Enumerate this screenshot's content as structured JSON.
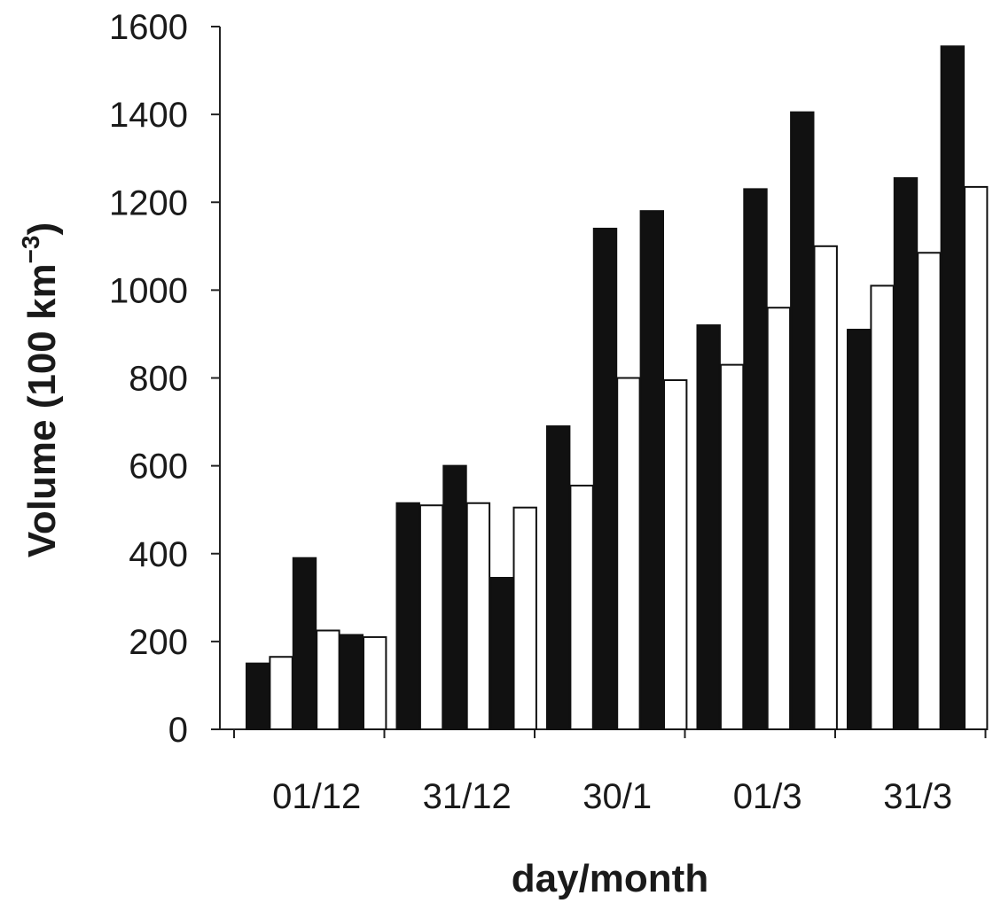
{
  "chart_data": {
    "type": "bar",
    "title": "",
    "xlabel": "day/month",
    "ylabel": {
      "prefix": "Volume (100 km",
      "superscript": "−3",
      "suffix": ")"
    },
    "ylim": [
      0,
      1600
    ],
    "yticks": [
      "0",
      "200",
      "400",
      "600",
      "800",
      "1000",
      "1200",
      "1400",
      "1600"
    ],
    "categories": [
      "01/12",
      "31/12",
      "30/1",
      "01/3",
      "31/3"
    ],
    "series_colors": [
      "#111111",
      "#ffffff",
      "#111111",
      "#ffffff",
      "#111111",
      "#ffffff"
    ],
    "groups": [
      [
        150,
        165,
        390,
        225,
        215,
        210
      ],
      [
        515,
        510,
        600,
        515,
        345,
        505
      ],
      [
        690,
        555,
        1140,
        800,
        1180,
        795
      ],
      [
        920,
        830,
        1230,
        960,
        1405,
        1100
      ],
      [
        910,
        1010,
        1255,
        1085,
        1555,
        1235
      ]
    ],
    "grid": false,
    "legend": "none"
  }
}
